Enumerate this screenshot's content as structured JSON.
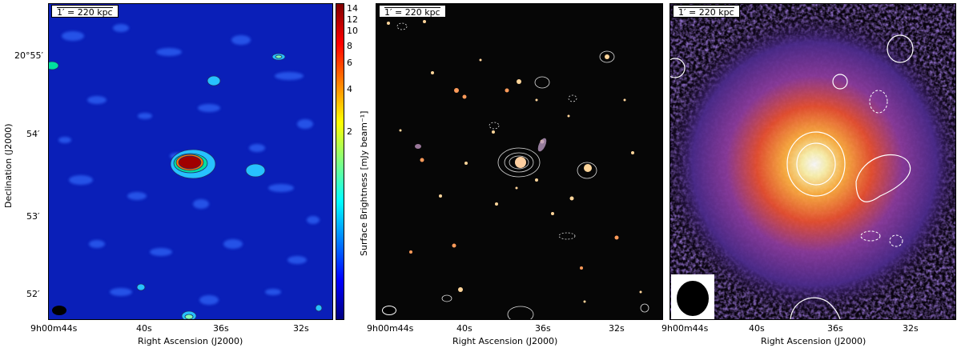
{
  "panels": [
    {
      "scale_bar": "1′ = 220 kpc",
      "xlabel": "Right Ascension (J2000)",
      "ylabel": "Declination (J2000)",
      "x_ticks": [
        "9h00m44s",
        "40s",
        "36s",
        "32s"
      ],
      "y_ticks": [
        "20°55′",
        "54′",
        "53′",
        "52′"
      ]
    },
    {
      "scale_bar": "1′ = 220 kpc",
      "xlabel": "Right Ascension (J2000)",
      "x_ticks": [
        "9h00m44s",
        "40s",
        "36s",
        "32s"
      ]
    },
    {
      "scale_bar": "1′ = 220 kpc",
      "xlabel": "Right Ascension (J2000)",
      "x_ticks": [
        "9h00m44s",
        "40s",
        "36s",
        "32s"
      ]
    }
  ],
  "colorbar": {
    "title": "Surface Brightness [mJy beam⁻¹]",
    "ticks": [
      "14",
      "12",
      "10",
      "8",
      "6",
      "4",
      "2"
    ],
    "colors": [
      "#00007f",
      "#0000ff",
      "#0080ff",
      "#00ffff",
      "#80ff80",
      "#ffff00",
      "#ff8000",
      "#ff0000",
      "#7f0000"
    ]
  }
}
